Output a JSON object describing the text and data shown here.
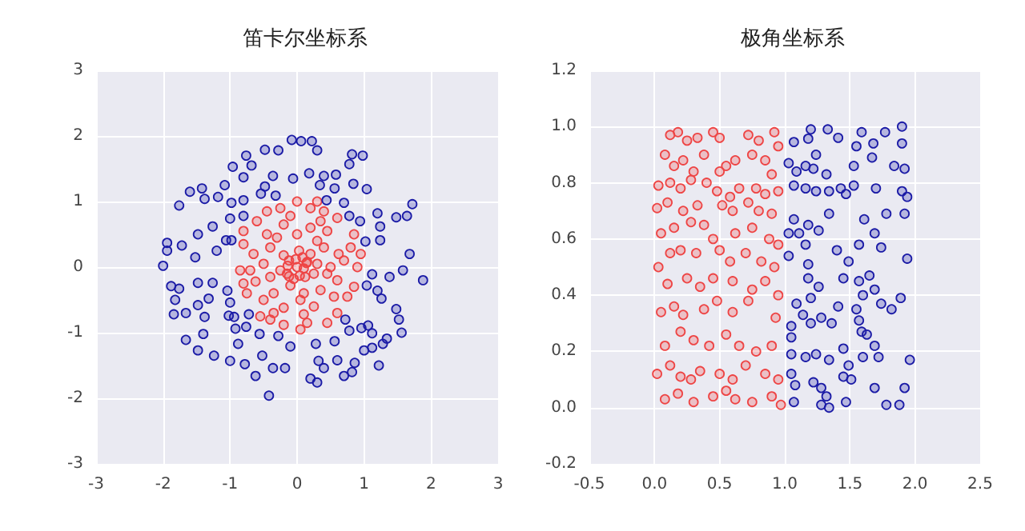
{
  "chart_data": [
    {
      "type": "scatter",
      "title": "笛卡尔坐标系",
      "xlim": [
        -3,
        3
      ],
      "ylim": [
        -3,
        3
      ],
      "xticks": [
        -3,
        -2,
        -1,
        0,
        1,
        2,
        3
      ],
      "yticks": [
        -3,
        -2,
        -1,
        0,
        1,
        2,
        3
      ],
      "grid": true,
      "marker": "circle",
      "series": [
        {
          "color": "#ee4444",
          "x": [
            0,
            0.14,
            -0.14,
            0.04,
            -0.12,
            0.1,
            -0.02,
            0.08,
            -0.12,
            0.15,
            -0.15,
            0.12,
            -0.05,
            0.2,
            -0.2,
            0.25,
            -0.25,
            0.03,
            -0.1,
            0.3,
            0.4,
            -0.4,
            0.35,
            -0.35,
            0.5,
            -0.5,
            0,
            0.05,
            0.45,
            -0.45,
            0.55,
            -0.5,
            0.2,
            -0.2,
            0.25,
            -0.2,
            0.62,
            -0.65,
            0.6,
            -0.62,
            0.3,
            -0.3,
            0.1,
            -0.4,
            0.45,
            0.8,
            -0.8,
            0.75,
            -0.75,
            0.2,
            -0.25,
            0.15,
            -0.2,
            0.6,
            -0.6,
            0.6,
            -0.55,
            0.9,
            -0.85,
            0,
            0.05,
            0.4,
            -0.45,
            0.45,
            -0.4,
            0.85,
            -0.8,
            0.85,
            -0.8,
            0.7,
            -0.7,
            0.35,
            -0.35,
            0.95,
            0.3,
            -0.1,
            0.1
          ],
          "values": [
            0,
            0.06,
            0.02,
            -0.13,
            -0.14,
            -0.02,
            0.12,
            0.15,
            0.1,
            0.08,
            -0.1,
            -0.15,
            -0.18,
            0.2,
            0.18,
            -0.1,
            -0.05,
            0.25,
            -0.28,
            0.05,
            0.3,
            0.3,
            -0.35,
            -0.4,
            0,
            0.05,
            0.5,
            -0.5,
            0.55,
            0.5,
            -0.45,
            -0.5,
            0.6,
            0.65,
            -0.6,
            -0.62,
            0.2,
            0.2,
            -0.2,
            -0.22,
            0.4,
            0.45,
            -0.4,
            -0.15,
            -0.1,
            0.3,
            0.35,
            -0.45,
            -0.4,
            0.9,
            0.9,
            -0.85,
            -0.88,
            0.75,
            0.7,
            -0.7,
            -0.75,
            0,
            -0.05,
            1,
            -0.95,
            0.85,
            0.85,
            -0.85,
            -0.8,
            0.5,
            0.55,
            -0.3,
            -0.25,
            0.1,
            -0.05,
            0.7,
            -0.7,
            0.2,
            1,
            0.78,
            -0.72
          ]
        },
        {
          "color": "#1a1aa6",
          "x": [
            -0.08,
            0.06,
            0.22,
            0.3,
            -0.28,
            -0.48,
            -0.76,
            -0.96,
            -0.68,
            -0.36,
            -0.06,
            0.18,
            0.4,
            0.58,
            0.78,
            0.82,
            0.98,
            0.84,
            1.04,
            0.56,
            0.34,
            -0.48,
            -0.8,
            -1.08,
            -1.42,
            -1.6,
            -1.76,
            -1.38,
            -1.18,
            -0.98,
            -0.8,
            -0.54,
            -0.32,
            -1,
            -0.8,
            -1.26,
            -1.48,
            -1.72,
            -1.94,
            -1.94,
            -2,
            -1.52,
            -1.2,
            -1.06,
            -1.88,
            -1.76,
            -1.48,
            -1.26,
            -1.82,
            -1.32,
            -1.04,
            -1,
            -1.84,
            -1.66,
            -1.48,
            -1.38,
            -1.02,
            -0.94,
            -0.72,
            -0.76,
            -0.92,
            -1.4,
            -1.66,
            -1.48,
            -1.24,
            -1,
            -0.88,
            -0.78,
            -0.56,
            -0.28,
            -0.52,
            -0.36,
            -0.18,
            -0.62,
            -0.42,
            -0.1,
            0.28,
            0.32,
            0.4,
            0.2,
            0.3,
            0.7,
            0.82,
            0.86,
            0.6,
            0.56,
            0.72,
            0.78,
            0.96,
            1.06,
            1.12,
            1.28,
            1,
            1.12,
            1.22,
            1.34,
            1.56,
            1.52,
            1.48,
            1.26,
            1.04,
            1.12,
            1.2,
            1.38,
            1.58,
            1.68,
            1.88,
            1.24,
            1.02,
            1.24,
            1.48,
            1.64,
            1.72,
            1.2,
            0.94,
            0.78,
            0.7,
            0.44,
            -0.98
          ],
          "values": [
            1.94,
            1.92,
            1.92,
            1.78,
            1.78,
            1.79,
            1.7,
            1.53,
            1.55,
            1.39,
            1.35,
            1.43,
            1.39,
            1.41,
            1.57,
            1.72,
            1.7,
            1.27,
            1.19,
            1.2,
            1.25,
            1.23,
            1.37,
            1.25,
            1.2,
            1.15,
            0.94,
            1.04,
            1.07,
            0.98,
            1.02,
            1.12,
            1.09,
            0.74,
            0.78,
            0.62,
            0.5,
            0.33,
            0.37,
            0.25,
            0.02,
            0.15,
            0.25,
            0.41,
            -0.29,
            -0.33,
            -0.24,
            -0.24,
            -0.5,
            -0.48,
            -0.36,
            -0.54,
            -0.72,
            -0.7,
            -0.58,
            -0.76,
            -0.74,
            -0.76,
            -0.72,
            -0.91,
            -0.94,
            -1.02,
            -1.11,
            -1.27,
            -1.35,
            -1.43,
            -1.17,
            -1.48,
            -1.02,
            -1.05,
            -1.35,
            -1.54,
            -1.54,
            -1.66,
            -1.96,
            -1.21,
            -1.17,
            -1.43,
            -1.54,
            -1.7,
            -1.76,
            -1.66,
            -1.6,
            -1.46,
            -1.42,
            -1.13,
            -0.8,
            -0.97,
            -0.93,
            -0.89,
            -1.01,
            -1.17,
            -1.27,
            -1.23,
            -1.5,
            -1.09,
            -1,
            -0.8,
            -0.64,
            -0.48,
            -0.28,
            -0.11,
            -0.36,
            -0.15,
            -0.05,
            0.2,
            -0.2,
            0.41,
            0.39,
            0.62,
            0.76,
            0.78,
            0.96,
            0.82,
            0.7,
            0.78,
            0.98,
            1.02,
            0.41
          ]
        }
      ]
    },
    {
      "type": "scatter",
      "title": "极角坐标系",
      "xlim": [
        -0.5,
        2.5
      ],
      "ylim": [
        -0.2,
        1.2
      ],
      "xticks": [
        -0.5,
        {
          "value": 0,
          "label": "0.0"
        },
        0.5,
        {
          "value": 1,
          "label": "1.0"
        },
        1.5,
        {
          "value": 2,
          "label": "2.0"
        },
        2.5
      ],
      "yticks": [
        -0.2,
        {
          "value": 0,
          "label": "0.0"
        },
        0.2,
        0.4,
        0.6,
        0.8,
        {
          "value": 1,
          "label": "1.0"
        },
        1.2
      ],
      "grid": true,
      "marker": "circle",
      "series": [
        {
          "color": "#ee4444",
          "x": [
            0.12,
            0.18,
            0.25,
            0.33,
            0.45,
            0.5,
            0.72,
            0.8,
            0.92,
            0.95,
            0.08,
            0.15,
            0.22,
            0.3,
            0.38,
            0.5,
            0.55,
            0.62,
            0.75,
            0.85,
            0.9,
            0.03,
            0.12,
            0.2,
            0.28,
            0.4,
            0.48,
            0.58,
            0.65,
            0.78,
            0.85,
            0.95,
            0.02,
            0.1,
            0.22,
            0.33,
            0.52,
            0.6,
            0.72,
            0.8,
            0.9,
            0.05,
            0.15,
            0.28,
            0.38,
            0.45,
            0.62,
            0.75,
            0.88,
            0.95,
            0.03,
            0.12,
            0.2,
            0.32,
            0.5,
            0.58,
            0.7,
            0.82,
            0.92,
            0.1,
            0.25,
            0.35,
            0.45,
            0.6,
            0.75,
            0.85,
            0.95,
            0.05,
            0.15,
            0.22,
            0.38,
            0.48,
            0.6,
            0.72,
            0.93,
            0.08,
            0.2,
            0.3,
            0.42,
            0.55,
            0.65,
            0.78,
            0.9,
            0.02,
            0.12,
            0.2,
            0.28,
            0.35,
            0.5,
            0.6,
            0.7,
            0.85,
            0.95,
            0.08,
            0.18,
            0.3,
            0.45,
            0.55,
            0.62,
            0.75,
            0.9,
            0.97
          ],
          "values": [
            0.97,
            0.98,
            0.95,
            0.96,
            0.98,
            0.96,
            0.97,
            0.95,
            0.98,
            0.93,
            0.9,
            0.86,
            0.88,
            0.84,
            0.9,
            0.84,
            0.86,
            0.88,
            0.9,
            0.88,
            0.83,
            0.79,
            0.8,
            0.78,
            0.81,
            0.8,
            0.77,
            0.75,
            0.78,
            0.78,
            0.76,
            0.77,
            0.71,
            0.73,
            0.7,
            0.72,
            0.72,
            0.7,
            0.73,
            0.7,
            0.69,
            0.62,
            0.64,
            0.66,
            0.65,
            0.6,
            0.62,
            0.64,
            0.6,
            0.58,
            0.5,
            0.55,
            0.56,
            0.55,
            0.56,
            0.52,
            0.55,
            0.52,
            0.5,
            0.44,
            0.46,
            0.43,
            0.46,
            0.45,
            0.42,
            0.45,
            0.4,
            0.34,
            0.36,
            0.33,
            0.35,
            0.38,
            0.34,
            0.38,
            0.32,
            0.22,
            0.27,
            0.24,
            0.22,
            0.26,
            0.22,
            0.2,
            0.22,
            0.12,
            0.15,
            0.11,
            0.1,
            0.13,
            0.12,
            0.1,
            0.15,
            0.12,
            0.1,
            0.03,
            0.05,
            0.02,
            0.04,
            0.06,
            0.03,
            0.02,
            0.04,
            0.01
          ]
        },
        {
          "color": "#1a1aa6",
          "x": [
            1.07,
            1.18,
            1.2,
            1.33,
            1.41,
            1.03,
            1.09,
            1.16,
            1.24,
            1.22,
            1.32,
            1.07,
            1.16,
            1.24,
            1.34,
            1.43,
            1.47,
            1.53,
            1.53,
            1.55,
            1.59,
            1.67,
            1.68,
            1.77,
            1.84,
            1.9,
            1.9,
            1.92,
            1.7,
            1.9,
            1.94,
            1.78,
            1.92,
            1.61,
            1.34,
            1.07,
            1.03,
            1.11,
            1.18,
            1.26,
            1.16,
            1.03,
            1.4,
            1.57,
            1.69,
            1.74,
            1.94,
            1.18,
            1.49,
            1.18,
            1.26,
            1.45,
            1.57,
            1.65,
            1.69,
            1.6,
            1.74,
            1.82,
            1.89,
            1.09,
            1.2,
            1.14,
            1.28,
            1.41,
            1.55,
            1.57,
            1.59,
            1.63,
            1.2,
            1.05,
            1.05,
            1.36,
            1.69,
            1.45,
            1.24,
            1.05,
            1.16,
            1.34,
            1.49,
            1.6,
            1.72,
            1.96,
            1.05,
            1.08,
            1.22,
            1.28,
            1.45,
            1.51,
            1.32,
            1.47,
            1.28,
            1.34,
            1.69,
            1.78,
            1.88,
            1.92,
            1.07
          ],
          "values": [
            0.945,
            0.957,
            0.99,
            0.99,
            0.96,
            0.87,
            0.84,
            0.86,
            0.9,
            0.85,
            0.83,
            0.79,
            0.78,
            0.77,
            0.77,
            0.78,
            0.76,
            0.79,
            0.86,
            0.93,
            0.98,
            0.89,
            0.94,
            0.98,
            0.86,
            0.94,
            1,
            0.85,
            0.78,
            0.77,
            0.75,
            0.69,
            0.69,
            0.67,
            0.69,
            0.67,
            0.62,
            0.62,
            0.65,
            0.63,
            0.58,
            0.54,
            0.56,
            0.58,
            0.62,
            0.57,
            0.53,
            0.51,
            0.52,
            0.46,
            0.43,
            0.46,
            0.45,
            0.47,
            0.42,
            0.4,
            0.37,
            0.35,
            0.39,
            0.37,
            0.39,
            0.33,
            0.32,
            0.36,
            0.35,
            0.31,
            0.27,
            0.26,
            0.3,
            0.29,
            0.25,
            0.3,
            0.22,
            0.21,
            0.19,
            0.19,
            0.18,
            0.17,
            0.15,
            0.18,
            0.18,
            0.17,
            0.12,
            0.08,
            0.09,
            0.07,
            0.11,
            0.1,
            0.04,
            0.02,
            0.01,
            0,
            0.07,
            0.01,
            0.01,
            0.07,
            0.02
          ]
        }
      ]
    }
  ]
}
